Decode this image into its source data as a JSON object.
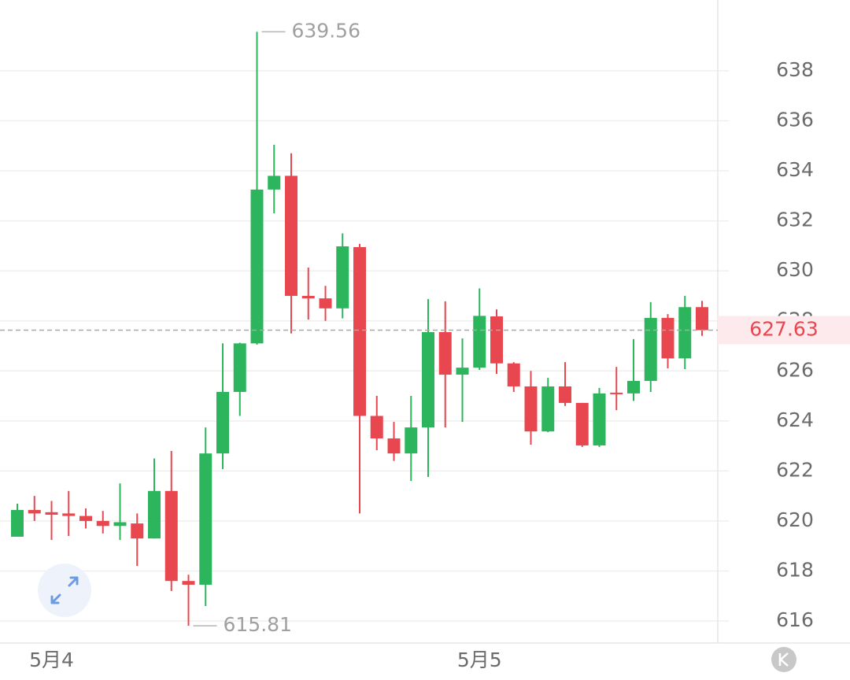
{
  "chart_data": {
    "type": "candlestick",
    "categories": [
      null,
      null,
      "5月4",
      null,
      null,
      null,
      null,
      null,
      null,
      null,
      null,
      null,
      null,
      null,
      null,
      null,
      null,
      null,
      null,
      null,
      null,
      null,
      null,
      null,
      null,
      null,
      null,
      "5月5",
      null,
      null,
      null,
      null,
      null,
      null,
      null,
      null,
      null,
      null,
      null,
      null,
      null
    ],
    "open": [
      619.37,
      620.44,
      620.35,
      620.3,
      620.2,
      620.0,
      619.8,
      619.9,
      619.3,
      621.2,
      617.6,
      617.45,
      622.7,
      625.16,
      627.1,
      633.25,
      633.8,
      629.0,
      628.9,
      628.5,
      630.95,
      624.2,
      623.3,
      622.7,
      623.74,
      627.55,
      625.85,
      626.13,
      628.18,
      626.3,
      625.38,
      623.58,
      625.38,
      624.72,
      623.02,
      625.13,
      625.1,
      625.6,
      628.12,
      626.5,
      628.55
    ],
    "high": [
      620.69,
      621.0,
      620.8,
      621.2,
      620.5,
      620.4,
      621.5,
      620.3,
      622.5,
      622.8,
      617.85,
      623.74,
      627.1,
      627.13,
      639.56,
      635.04,
      634.7,
      630.13,
      629.4,
      631.5,
      631.08,
      625.0,
      623.96,
      625.0,
      628.87,
      628.78,
      627.3,
      629.3,
      628.46,
      626.35,
      626.0,
      625.72,
      626.35,
      624.72,
      625.32,
      626.16,
      627.27,
      628.75,
      628.27,
      629.0,
      628.8
    ],
    "low": [
      619.37,
      620.0,
      619.24,
      619.4,
      619.7,
      619.5,
      619.24,
      618.2,
      619.3,
      617.2,
      615.81,
      616.6,
      622.07,
      624.2,
      627.05,
      632.3,
      627.5,
      628.05,
      628.0,
      628.1,
      620.3,
      622.83,
      622.4,
      621.6,
      621.76,
      623.74,
      623.96,
      626.04,
      625.88,
      625.16,
      623.05,
      623.55,
      624.6,
      622.96,
      622.96,
      624.43,
      624.8,
      625.16,
      626.1,
      626.07,
      627.4
    ],
    "close": [
      620.44,
      620.3,
      620.25,
      620.2,
      620.0,
      619.8,
      619.95,
      619.3,
      621.2,
      617.6,
      617.45,
      622.7,
      625.16,
      627.1,
      633.25,
      633.8,
      629.0,
      628.9,
      628.5,
      630.98,
      624.2,
      623.3,
      622.7,
      623.74,
      627.55,
      625.85,
      626.13,
      628.2,
      626.3,
      625.38,
      623.58,
      625.38,
      624.72,
      623.02,
      625.1,
      625.07,
      625.6,
      628.12,
      626.5,
      628.55,
      627.63
    ],
    "up_color": "#2db55d",
    "down_color": "#e8474f",
    "ylim": [
      615.12,
      640.83
    ],
    "yticks": [
      616,
      618,
      620,
      622,
      624,
      626,
      628,
      630,
      632,
      634,
      636,
      638
    ],
    "grid": true,
    "high_marker": 639.56,
    "low_marker": 615.81,
    "last_price": 627.63
  }
}
